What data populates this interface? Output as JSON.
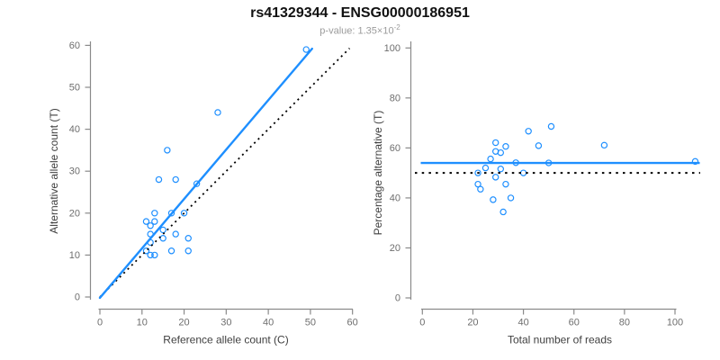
{
  "title": "rs41329344 - ENSG00000186951",
  "subtitle": {
    "prefix": "p-value: 1.35×10",
    "exponent": "-2"
  },
  "colors": {
    "accent_blue": "#1e8fff",
    "axis_gray": "#8a8a8a",
    "tick_label_gray": "#6e6e6e",
    "axis_label_gray": "#3f3f3f",
    "subtitle_gray": "#9b9b9b",
    "line_black": "#000000",
    "background": "#ffffff"
  },
  "chart_data": [
    {
      "name": "allele-count-scatter",
      "type": "scatter",
      "title": "rs41329344 - ENSG00000186951",
      "subtitle": "p-value: 1.35×10^-2",
      "xlabel": "Reference allele count (C)",
      "ylabel": "Alternative allele count (T)",
      "xlim": [
        0,
        60
      ],
      "ylim": [
        0,
        60
      ],
      "xticks": [
        0,
        10,
        20,
        30,
        40,
        50,
        60
      ],
      "yticks": [
        0,
        10,
        20,
        30,
        40,
        50,
        60
      ],
      "grid": false,
      "points": [
        [
          11,
          11
        ],
        [
          11,
          18
        ],
        [
          12,
          10
        ],
        [
          12,
          13
        ],
        [
          12,
          15
        ],
        [
          12,
          17
        ],
        [
          13,
          10
        ],
        [
          13,
          18
        ],
        [
          13,
          20
        ],
        [
          14,
          28
        ],
        [
          15,
          14
        ],
        [
          15,
          16
        ],
        [
          16,
          35
        ],
        [
          17,
          11
        ],
        [
          17,
          20
        ],
        [
          18,
          15
        ],
        [
          18,
          28
        ],
        [
          20,
          20
        ],
        [
          21,
          11
        ],
        [
          21,
          14
        ],
        [
          23,
          27
        ],
        [
          28,
          44
        ],
        [
          49,
          59
        ]
      ],
      "fit_line": {
        "x1": 0,
        "y1": -0.2,
        "x2": 50.4,
        "y2": 59.2,
        "style": "solid"
      },
      "identity_line": {
        "x1": 0,
        "y1": 0,
        "x2": 59.3,
        "y2": 59.3,
        "style": "dotted"
      }
    },
    {
      "name": "percentage-scatter",
      "type": "scatter",
      "xlabel": "Total number of reads",
      "ylabel": "Percentage alternative (T)",
      "xlim": [
        0,
        110
      ],
      "ylim": [
        0,
        100
      ],
      "xticks": [
        0,
        20,
        40,
        60,
        80,
        100
      ],
      "yticks": [
        0,
        20,
        40,
        60,
        80,
        100
      ],
      "grid": false,
      "points": [
        [
          22,
          50.0
        ],
        [
          29,
          62.1
        ],
        [
          22,
          45.5
        ],
        [
          25,
          52.0
        ],
        [
          27,
          55.6
        ],
        [
          29,
          58.6
        ],
        [
          23,
          43.5
        ],
        [
          31,
          58.1
        ],
        [
          33,
          60.6
        ],
        [
          42,
          66.7
        ],
        [
          29,
          48.3
        ],
        [
          31,
          51.6
        ],
        [
          51,
          68.6
        ],
        [
          28,
          39.3
        ],
        [
          37,
          54.1
        ],
        [
          33,
          45.5
        ],
        [
          46,
          60.9
        ],
        [
          40,
          50.0
        ],
        [
          32,
          34.4
        ],
        [
          35,
          40.0
        ],
        [
          50,
          54.0
        ],
        [
          72,
          61.1
        ],
        [
          108,
          54.6
        ]
      ],
      "mean_line": {
        "y": 54,
        "style": "solid"
      },
      "reference_line": {
        "y": 50,
        "style": "dotted"
      }
    }
  ]
}
